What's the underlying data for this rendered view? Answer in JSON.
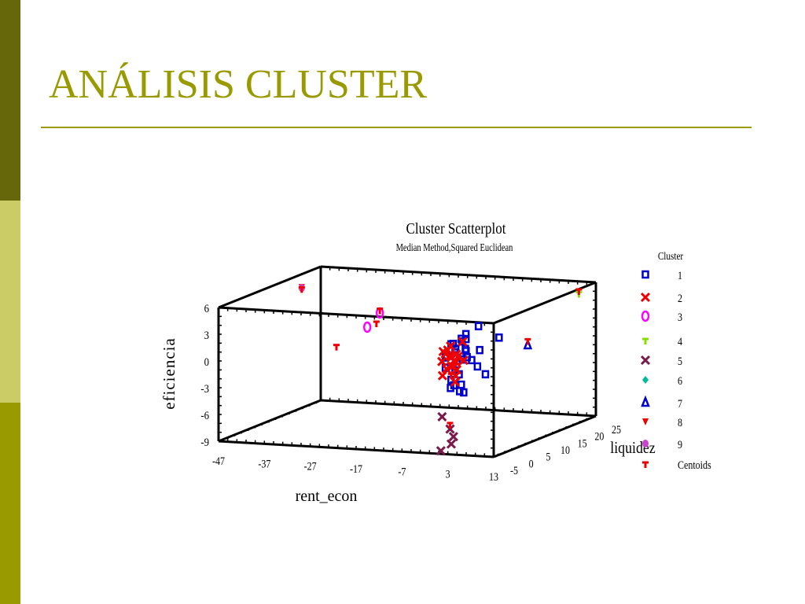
{
  "slide": {
    "title": "ANÁLISIS CLUSTER",
    "colors": {
      "title": "#999900",
      "bar_top": "#66660a",
      "bar_mid": "#cccc66",
      "bar_bottom": "#999900"
    }
  },
  "chart_data": {
    "type": "scatter",
    "dimensions": "3d",
    "title": "Cluster Scatterplot",
    "subtitle": "Median Method,Squared Euclidean",
    "xlabel": "rent_econ",
    "ylabel": "liquidez",
    "zlabel": "eficiencia",
    "x_ticks": [
      "-47",
      "-37",
      "-27",
      "-17",
      "-7",
      "3",
      "13"
    ],
    "y_ticks": [
      "-5",
      "0",
      "5",
      "10",
      "15",
      "20",
      "25"
    ],
    "z_ticks": [
      "6",
      "3",
      "0",
      "-3",
      "-6",
      "-9"
    ],
    "xlim": [
      -47,
      13
    ],
    "ylim": [
      -5,
      25
    ],
    "zlim": [
      -9,
      6
    ],
    "legend_title": "Cluster",
    "legend_position": "right",
    "series": [
      {
        "name": "1",
        "color": "#0000cc",
        "marker": "square",
        "points": [
          [
            0,
            0,
            2.5
          ],
          [
            1,
            0,
            2
          ],
          [
            0.5,
            0.5,
            1.5
          ],
          [
            1.5,
            1,
            3
          ],
          [
            2,
            0.5,
            2.8
          ],
          [
            0,
            1,
            1
          ],
          [
            1,
            2,
            0.5
          ],
          [
            2,
            1.5,
            1.8
          ],
          [
            -1,
            0,
            1.2
          ],
          [
            -0.5,
            -1,
            0
          ],
          [
            0.5,
            0.5,
            -0.5
          ],
          [
            1,
            1,
            -1
          ],
          [
            2,
            2,
            0.8
          ],
          [
            2.5,
            1,
            3
          ],
          [
            -1,
            2,
            2.2
          ],
          [
            0,
            0,
            -1.5
          ],
          [
            1,
            -0.5,
            -2
          ],
          [
            -0.5,
            0.5,
            -2.5
          ],
          [
            1.5,
            0.5,
            -2.8
          ],
          [
            3,
            2,
            0.5
          ],
          [
            4,
            3,
            1.5
          ],
          [
            5,
            1,
            0
          ],
          [
            6,
            2,
            -1
          ],
          [
            3,
            4,
            4
          ],
          [
            6,
            6,
            2.5
          ],
          [
            4,
            -1,
            2
          ],
          [
            2,
            1,
            -3
          ],
          [
            0,
            3,
            -2.5
          ],
          [
            -2,
            1,
            0.8
          ],
          [
            1,
            3,
            3.2
          ]
        ]
      },
      {
        "name": "2",
        "color": "#ee0000",
        "marker": "x",
        "points": [
          [
            0,
            0,
            0
          ],
          [
            -1,
            1,
            1
          ],
          [
            1,
            0,
            -1
          ],
          [
            0,
            -1,
            2
          ],
          [
            -2,
            0,
            0.5
          ],
          [
            0.5,
            1,
            -0.5
          ],
          [
            1.5,
            -0.5,
            1.5
          ],
          [
            -0.5,
            0.5,
            2.2
          ],
          [
            -1.5,
            -0.5,
            -1
          ],
          [
            0,
            2,
            0.8
          ],
          [
            1,
            -1,
            0.2
          ],
          [
            -1,
            -1,
            1.8
          ],
          [
            0.5,
            0.5,
            -1.8
          ],
          [
            -0.5,
            1.5,
            0.4
          ],
          [
            2,
            1,
            0.6
          ],
          [
            -2,
            1,
            1.2
          ],
          [
            1,
            2,
            2.5
          ],
          [
            0,
            0,
            1
          ],
          [
            -1,
            0,
            -0.3
          ],
          [
            0.8,
            0.3,
            0.5
          ]
        ]
      },
      {
        "name": "3",
        "color": "#ff00ff",
        "marker": "circle",
        "points": [
          [
            -20,
            6,
            4.5
          ],
          [
            -22,
            5,
            3
          ]
        ]
      },
      {
        "name": "4",
        "color": "#88dd00",
        "marker": "plus",
        "points": [
          [
            13,
            20,
            5.5
          ]
        ]
      },
      {
        "name": "5",
        "color": "#7a1a4a",
        "marker": "x",
        "points": [
          [
            1,
            -4,
            -5
          ],
          [
            2,
            -3,
            -6.5
          ],
          [
            3,
            -4,
            -8
          ],
          [
            2,
            -2,
            -7.5
          ],
          [
            0,
            -3,
            -9
          ]
        ]
      },
      {
        "name": "6",
        "color": "#00bb99",
        "marker": "diamond",
        "points": [
          [
            -40,
            10,
            6
          ]
        ]
      },
      {
        "name": "7",
        "color": "#0000cc",
        "marker": "triangle",
        "points": [
          [
            13,
            5,
            2
          ]
        ]
      },
      {
        "name": "8",
        "color": "#ee0000",
        "marker": "triangle-down",
        "points": [
          [
            -40,
            10,
            6.2
          ]
        ]
      },
      {
        "name": "9",
        "color": "#cc44cc",
        "marker": "circle-filled",
        "points": [
          [
            -40,
            10,
            6.1
          ]
        ]
      },
      {
        "name": "Centoids",
        "color": "#ee0000",
        "marker": "plus",
        "points": [
          [
            -40,
            10,
            6
          ],
          [
            -20,
            6,
            4.8
          ],
          [
            -20,
            5,
            3.5
          ],
          [
            -25,
            0,
            1.5
          ],
          [
            13,
            20,
            5.8
          ],
          [
            13,
            5,
            2.5
          ],
          [
            1,
            0,
            0.5
          ],
          [
            2,
            -3,
            -6
          ],
          [
            0,
            0,
            -1
          ]
        ]
      }
    ]
  }
}
